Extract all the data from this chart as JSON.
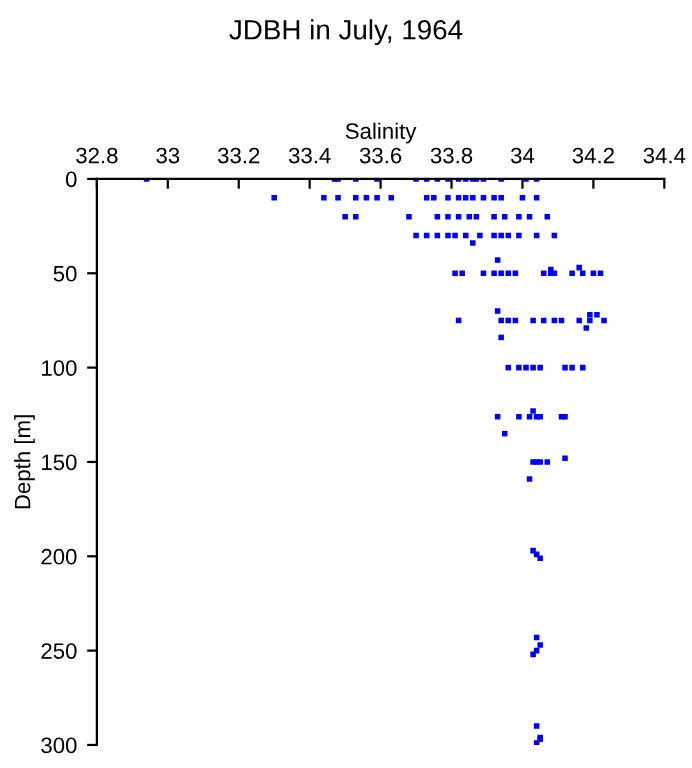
{
  "chart_data": {
    "type": "scatter",
    "title": "JDBH in July, 1964",
    "xlabel": "Salinity",
    "ylabel": "Depth [m]",
    "xlim": [
      32.8,
      34.4
    ],
    "xticks": [
      32.8,
      33,
      33.2,
      33.4,
      33.6,
      33.8,
      34,
      34.2,
      34.4
    ],
    "ylim": [
      300,
      0
    ],
    "yticks": [
      0,
      50,
      100,
      150,
      200,
      250,
      300
    ],
    "marker": "square",
    "grid": false,
    "series": [
      {
        "color": "#0000ff",
        "x": [
          32.94,
          33.47,
          33.48,
          33.53,
          33.59,
          33.7,
          33.73,
          33.76,
          33.79,
          33.82,
          33.84,
          33.86,
          33.87,
          33.89,
          33.94,
          34.01,
          34.04,
          33.3,
          33.44,
          33.48,
          33.53,
          33.56,
          33.59,
          33.63,
          33.73,
          33.75,
          33.79,
          33.82,
          33.84,
          33.86,
          33.89,
          33.92,
          33.94,
          34.0,
          34.04,
          33.5,
          33.53,
          33.68,
          33.76,
          33.79,
          33.82,
          33.85,
          33.87,
          33.92,
          33.95,
          33.99,
          34.02,
          34.07,
          33.7,
          33.73,
          33.76,
          33.79,
          33.81,
          33.84,
          33.88,
          33.92,
          33.94,
          33.96,
          33.99,
          34.04,
          34.09,
          33.86,
          33.93,
          34.08,
          34.16,
          33.81,
          33.83,
          33.89,
          33.92,
          33.94,
          33.96,
          33.98,
          34.06,
          34.08,
          34.09,
          34.14,
          34.17,
          34.2,
          34.22,
          33.93,
          34.19,
          34.21,
          33.82,
          33.94,
          33.96,
          33.98,
          34.03,
          34.06,
          34.09,
          34.11,
          34.16,
          34.19,
          34.23,
          34.18,
          33.94,
          33.96,
          33.99,
          34.01,
          34.03,
          34.05,
          34.12,
          34.14,
          34.17,
          34.03,
          33.93,
          33.99,
          34.02,
          34.04,
          34.05,
          34.11,
          34.12,
          33.95,
          34.03,
          34.04,
          34.05,
          34.07,
          34.12,
          34.02,
          34.03,
          34.04,
          34.05,
          34.04,
          34.05,
          34.04,
          34.03,
          34.04,
          34.05,
          34.05,
          34.04
        ],
        "values": [
          0,
          0,
          0,
          0,
          0,
          0,
          0,
          0,
          0,
          0,
          0,
          0,
          0,
          0,
          0,
          0,
          0,
          10,
          10,
          10,
          10,
          10,
          10,
          10,
          10,
          10,
          10,
          10,
          10,
          10,
          10,
          10,
          10,
          10,
          10,
          20,
          20,
          20,
          20,
          20,
          20,
          20,
          20,
          20,
          20,
          20,
          20,
          20,
          30,
          30,
          30,
          30,
          30,
          30,
          30,
          30,
          30,
          30,
          30,
          30,
          30,
          34,
          43,
          48,
          47,
          50,
          50,
          50,
          50,
          50,
          50,
          50,
          50,
          50,
          50,
          50,
          50,
          50,
          50,
          70,
          72,
          72,
          75,
          75,
          75,
          75,
          75,
          75,
          75,
          75,
          75,
          75,
          75,
          79,
          84,
          100,
          100,
          100,
          100,
          100,
          100,
          100,
          100,
          123,
          126,
          126,
          126,
          126,
          126,
          126,
          126,
          135,
          150,
          150,
          150,
          150,
          148,
          159,
          197,
          199,
          201,
          243,
          247,
          250,
          252,
          290,
          296,
          297,
          299
        ]
      }
    ]
  }
}
